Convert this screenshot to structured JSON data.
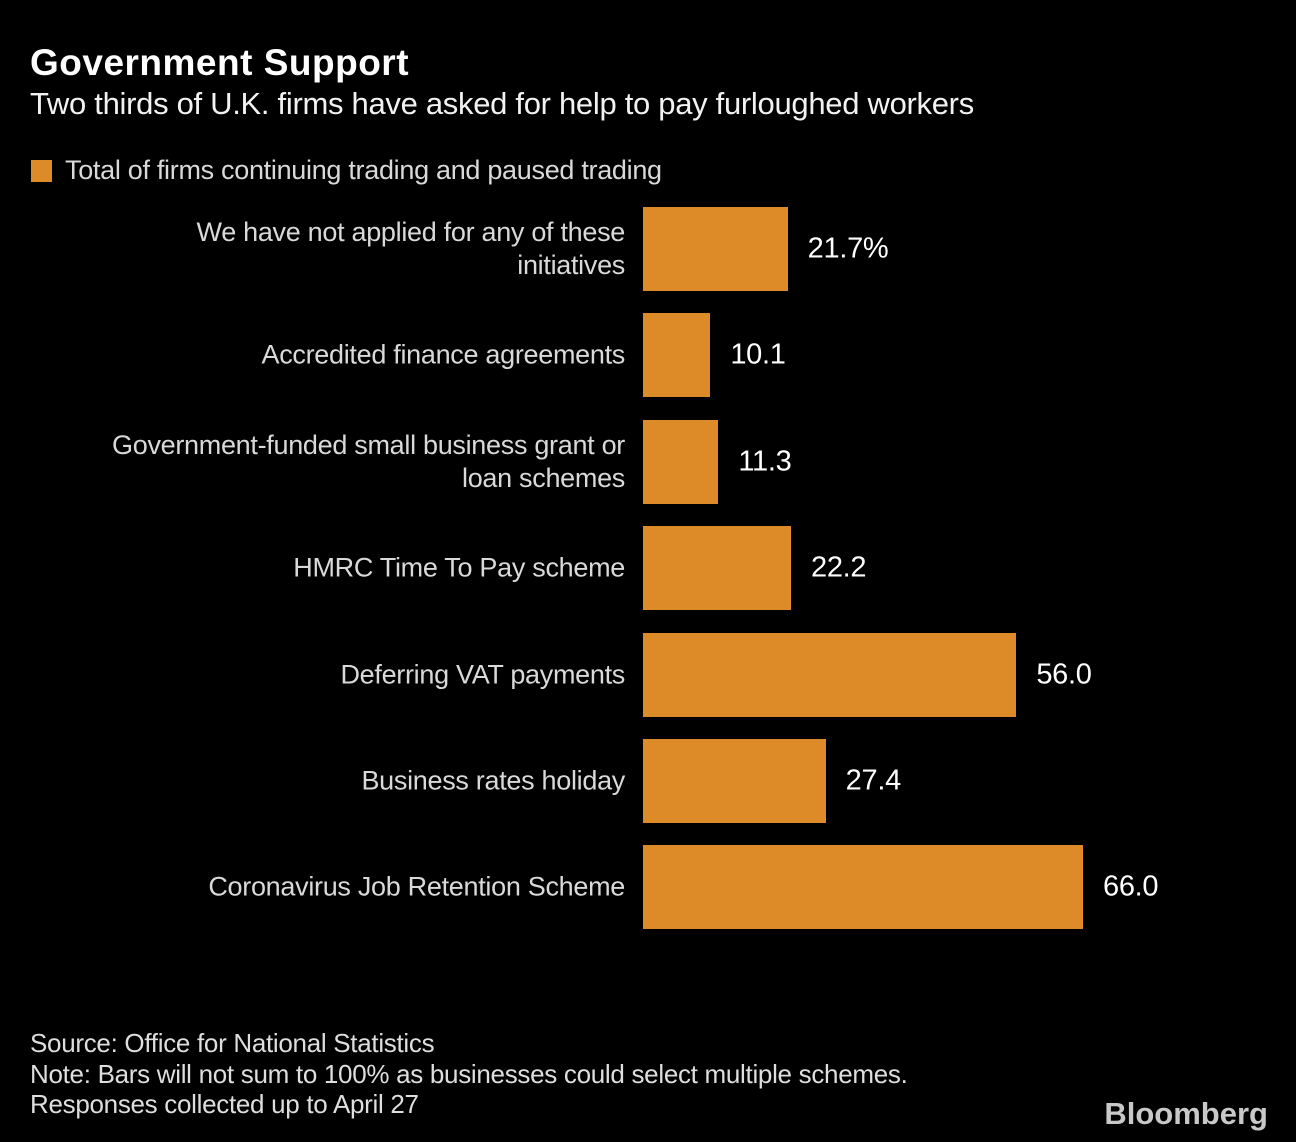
{
  "header": {
    "title": "Government Support",
    "subtitle": "Two thirds of U.K. firms have asked for help to pay furloughed workers"
  },
  "legend": {
    "label": "Total of firms continuing trading and paused trading",
    "swatch_color": "#DD8B28"
  },
  "chart_data": {
    "type": "bar",
    "orientation": "horizontal",
    "title": "Government Support",
    "subtitle": "Two thirds of U.K. firms have asked for help to pay furloughed workers",
    "legend_entries": [
      "Total of firms continuing trading and paused trading"
    ],
    "legend_position": "top-left",
    "grid": false,
    "xlim": [
      0,
      66
    ],
    "bar_color": "#DD8B28",
    "categories": [
      "We have not applied for any of these\ninitiatives",
      "Accredited finance agreements",
      "Government-funded small business grant or\nloan schemes",
      "HMRC Time To Pay scheme",
      "Deferring VAT payments",
      "Business rates holiday",
      "Coronavirus Job Retention Scheme"
    ],
    "values": [
      21.7,
      10.1,
      11.3,
      22.2,
      56.0,
      27.4,
      66.0
    ],
    "value_labels": [
      "21.7%",
      "10.1",
      "11.3",
      "22.2",
      "56.0",
      "27.4",
      "66.0"
    ],
    "unit": "percent of firms"
  },
  "footer": {
    "source": "Source: Office for National Statistics",
    "note_line1": "Note: Bars will not sum to 100% as businesses could select multiple schemes.",
    "note_line2": "Responses collected up to April 27",
    "brand": "Bloomberg"
  },
  "colors": {
    "background": "#000000",
    "bar": "#DD8B28",
    "title_text": "#ffffff",
    "label_text": "#d9d9d9",
    "value_text": "#ffffff",
    "brand_text": "#c8c8c8"
  }
}
